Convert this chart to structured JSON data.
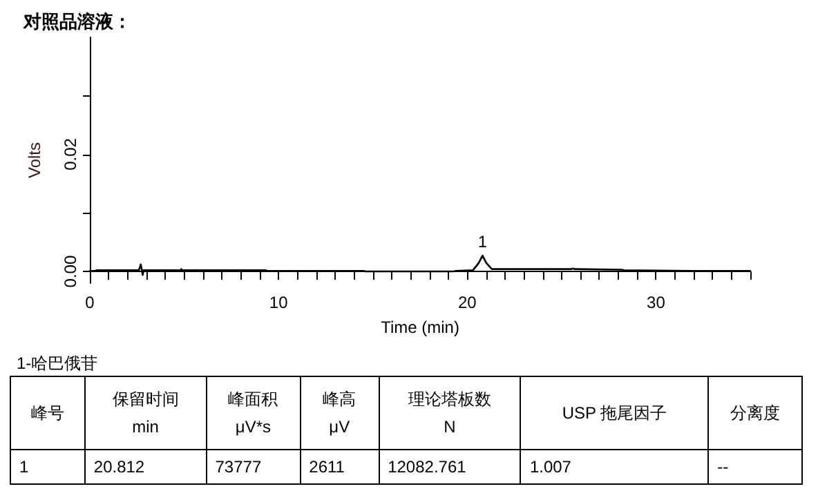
{
  "chart_data": [
    {
      "type": "line",
      "title": "对照品溶液：",
      "xlabel": "Time (min)",
      "ylabel": "Volts",
      "xlim": [
        0,
        35
      ],
      "ylim": [
        -0.002,
        0.04
      ],
      "xticks": [
        0,
        {
          "value": 1,
          "label": null
        },
        {
          "value": 2,
          "label": null
        },
        {
          "value": 3,
          "label": null
        },
        {
          "value": 4,
          "label": null
        },
        {
          "value": 5,
          "label": null
        },
        {
          "value": 6,
          "label": null
        },
        {
          "value": 7,
          "label": null
        },
        {
          "value": 8,
          "label": null
        },
        {
          "value": 9,
          "label": null
        },
        10,
        {
          "value": 11,
          "label": null
        },
        {
          "value": 12,
          "label": null
        },
        {
          "value": 13,
          "label": null
        },
        {
          "value": 14,
          "label": null
        },
        {
          "value": 15,
          "label": null
        },
        {
          "value": 16,
          "label": null
        },
        {
          "value": 17,
          "label": null
        },
        {
          "value": 18,
          "label": null
        },
        {
          "value": 19,
          "label": null
        },
        20,
        {
          "value": 21,
          "label": null
        },
        {
          "value": 22,
          "label": null
        },
        {
          "value": 23,
          "label": null
        },
        {
          "value": 24,
          "label": null
        },
        {
          "value": 25,
          "label": null
        },
        {
          "value": 26,
          "label": null
        },
        {
          "value": 27,
          "label": null
        },
        {
          "value": 28,
          "label": null
        },
        {
          "value": 29,
          "label": null
        },
        30,
        {
          "value": 31,
          "label": null
        },
        {
          "value": 32,
          "label": null
        },
        {
          "value": 33,
          "label": null
        },
        {
          "value": 34,
          "label": null
        },
        {
          "value": 35,
          "label": null
        }
      ],
      "yticks": [
        {
          "value": 0,
          "label": "0.00"
        },
        {
          "value": 0.01,
          "label": null
        },
        {
          "value": 0.02,
          "label": "0.02"
        },
        {
          "value": 0.03,
          "label": null
        }
      ],
      "grid": false,
      "marker": "none",
      "line_style": "solid",
      "series": [
        {
          "color": "#000000",
          "x": [
            0,
            0.3,
            0.35,
            2.6,
            2.7,
            2.75,
            2.8,
            2.85,
            3.0,
            4.8,
            4.85,
            4.9,
            9.3,
            9.4,
            14.5,
            14.6,
            19.3,
            19.4,
            20.3,
            20.6,
            20.812,
            21.0,
            21.3,
            21.6,
            25.5,
            25.6,
            25.7,
            28.2,
            28.3,
            32.0,
            33.0,
            34.0,
            35.0
          ],
          "values": [
            0.0001,
            0.0001,
            0.0002,
            0.0002,
            0.0012,
            0.0004,
            -0.0006,
            0.0002,
            0.0002,
            0.0002,
            0.0004,
            0.0002,
            0.0002,
            0.0001,
            0.0001,
            0.0,
            0.0,
            0.0001,
            0.0002,
            0.0014,
            0.0027,
            0.0015,
            0.0004,
            0.0004,
            0.0004,
            0.0005,
            0.0004,
            0.0003,
            0.0002,
            0.0001,
            0.0001,
            0.0001,
            0.0001
          ]
        }
      ],
      "annotations": [
        {
          "text": "1",
          "x": 20.812,
          "y": 0.0027
        }
      ]
    },
    {
      "type": "other",
      "title": "1-哈巴俄苷",
      "annotations": [
        "峰号",
        "保留时间\nmin",
        "峰面积\nμV*s",
        "峰高\nμV",
        "理论塔板数\nN",
        "USP 拖尾因子",
        "分离度",
        "1",
        "20.812",
        "73777",
        "2611",
        "12082.761",
        "1.007",
        "--"
      ]
    }
  ]
}
